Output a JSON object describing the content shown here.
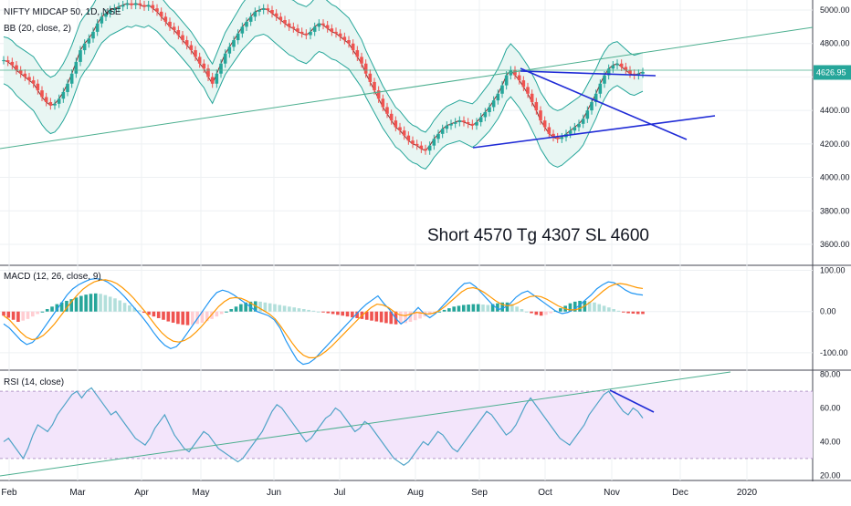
{
  "chart_data": {
    "type": "candlestick",
    "symbol": "NIFTY MIDCAP 50, 1D, NSE",
    "indicator_labels": {
      "bb": "BB (20, close, 2)",
      "macd": "MACD (12, 26, close, 9)",
      "rsi": "RSI (14, close)"
    },
    "annotation": "Short 4570 Tg 4307 SL 4600",
    "last_price": "4626.95",
    "x_ticks": [
      "Feb",
      "Mar",
      "Apr",
      "May",
      "Jun",
      "Jul",
      "Aug",
      "Sep",
      "Oct",
      "Nov",
      "Dec",
      "2020"
    ],
    "price_axis": {
      "ticks": [
        "5000.00",
        "4800.00",
        "4600.00",
        "4400.00",
        "4200.00",
        "4000.00",
        "3800.00",
        "3600.00"
      ],
      "range": [
        3480,
        5060
      ]
    },
    "macd_axis": {
      "ticks": [
        "100.00",
        "0.00",
        "-100.00"
      ],
      "range": [
        -140,
        110
      ]
    },
    "rsi_axis": {
      "ticks": [
        "80.00",
        "60.00",
        "40.00",
        "20.00"
      ],
      "range": [
        18,
        82
      ],
      "bands": [
        30,
        70
      ]
    },
    "price_series": [
      [
        4700,
        4690,
        4670,
        4640,
        4620,
        4600,
        4580,
        4560,
        4520,
        4480,
        4450,
        4430,
        4440,
        4470,
        4510,
        4560,
        4620,
        4690,
        4760,
        4800,
        4830,
        4870,
        4920,
        4960,
        4980,
        5000,
        5010,
        5020,
        5030,
        5040,
        5030,
        5040,
        5030,
        5020,
        5030,
        5010,
        4990,
        4960,
        4930,
        4900,
        4880,
        4850,
        4820,
        4790,
        4760,
        4720,
        4680,
        4650,
        4600,
        4560,
        4620,
        4680,
        4740,
        4780,
        4820,
        4860,
        4900,
        4930,
        4960,
        4990,
        5000,
        5010,
        5000,
        4980,
        4960,
        4940,
        4920,
        4900,
        4890,
        4870,
        4860,
        4850,
        4870,
        4900,
        4920,
        4910,
        4890,
        4870,
        4860,
        4840,
        4820,
        4800,
        4760,
        4720,
        4680,
        4620,
        4570,
        4520,
        4470,
        4420,
        4380,
        4340,
        4300,
        4280,
        4250,
        4220,
        4200,
        4190,
        4170,
        4160,
        4190,
        4230,
        4260,
        4290,
        4310,
        4320,
        4330,
        4340,
        4330,
        4320,
        4310,
        4330,
        4360,
        4390,
        4420,
        4460,
        4500,
        4550,
        4610,
        4640,
        4610,
        4580,
        4540,
        4500,
        4450,
        4400,
        4340,
        4300,
        4260,
        4240,
        4230,
        4240,
        4260,
        4280,
        4300,
        4320,
        4350,
        4400,
        4450,
        4500,
        4560,
        4610,
        4650,
        4670,
        4680,
        4660,
        4640,
        4620,
        4610,
        4620,
        4630
      ]
    ],
    "macd_hist": [
      -10,
      -15,
      -20,
      -25,
      -22,
      -18,
      -12,
      -6,
      0,
      6,
      12,
      18,
      22,
      26,
      30,
      34,
      38,
      41,
      43,
      44,
      43,
      40,
      36,
      32,
      27,
      21,
      15,
      9,
      3,
      -3,
      -8,
      -12,
      -16,
      -20,
      -24,
      -27,
      -30,
      -32,
      -33,
      -32,
      -30,
      -27,
      -23,
      -18,
      -12,
      -6,
      0,
      6,
      12,
      18,
      22,
      24,
      25,
      24,
      22,
      20,
      18,
      16,
      14,
      12,
      10,
      8,
      6,
      4,
      2,
      0,
      -2,
      -4,
      -6,
      -8,
      -10,
      -12,
      -14,
      -16,
      -18,
      -20,
      -22,
      -24,
      -26,
      -28,
      -30,
      -31,
      -30,
      -28,
      -25,
      -21,
      -17,
      -12,
      -8,
      -4,
      0,
      4,
      8,
      12,
      14,
      16,
      17,
      18,
      18,
      17,
      16,
      18,
      20,
      22,
      22,
      18,
      12,
      6,
      0,
      -4,
      -8,
      -10,
      -8,
      -4,
      2,
      8,
      14,
      20,
      24,
      26,
      26,
      24,
      22,
      18,
      14,
      10,
      6,
      2,
      -2,
      -4,
      -5,
      -6,
      -6
    ],
    "macd_line": [
      -30,
      -40,
      -55,
      -70,
      -80,
      -75,
      -60,
      -40,
      -20,
      0,
      20,
      40,
      55,
      65,
      72,
      78,
      80,
      78,
      72,
      62,
      50,
      36,
      20,
      4,
      -12,
      -30,
      -50,
      -68,
      -82,
      -90,
      -85,
      -70,
      -50,
      -30,
      -10,
      10,
      30,
      46,
      52,
      48,
      40,
      30,
      20,
      10,
      0,
      -5,
      -10,
      -20,
      -40,
      -70,
      -95,
      -118,
      -128,
      -125,
      -115,
      -100,
      -85,
      -70,
      -55,
      -40,
      -25,
      -10,
      5,
      18,
      28,
      38,
      20,
      5,
      -15,
      -30,
      -20,
      -5,
      10,
      -5,
      -15,
      -5,
      10,
      25,
      40,
      55,
      68,
      70,
      60,
      45,
      30,
      15,
      5,
      10,
      20,
      35,
      45,
      50,
      40,
      30,
      20,
      10,
      0,
      -5,
      -2,
      5,
      15,
      28,
      40,
      55,
      65,
      72,
      70,
      62,
      52,
      45,
      42,
      40
    ],
    "macd_signal": [
      -10,
      -20,
      -35,
      -50,
      -62,
      -68,
      -66,
      -58,
      -45,
      -30,
      -12,
      6,
      24,
      40,
      54,
      64,
      72,
      76,
      77,
      74,
      68,
      58,
      46,
      32,
      16,
      0,
      -18,
      -36,
      -52,
      -64,
      -72,
      -74,
      -70,
      -62,
      -50,
      -36,
      -20,
      -4,
      12,
      24,
      32,
      34,
      32,
      26,
      18,
      10,
      2,
      -6,
      -18,
      -36,
      -56,
      -76,
      -94,
      -106,
      -112,
      -112,
      -106,
      -96,
      -84,
      -70,
      -56,
      -42,
      -28,
      -14,
      -2,
      10,
      18,
      16,
      10,
      0,
      -8,
      -10,
      -6,
      -2,
      -4,
      -6,
      -4,
      2,
      12,
      24,
      36,
      48,
      56,
      58,
      54,
      46,
      36,
      26,
      18,
      14,
      16,
      22,
      30,
      36,
      38,
      36,
      30,
      22,
      14,
      8,
      4,
      4,
      8,
      16,
      26,
      38,
      50,
      60,
      66,
      68,
      66,
      62,
      58,
      56
    ],
    "rsi": [
      40,
      42,
      38,
      34,
      30,
      36,
      44,
      50,
      48,
      46,
      50,
      56,
      60,
      64,
      68,
      70,
      66,
      70,
      72,
      68,
      64,
      60,
      56,
      58,
      54,
      50,
      46,
      42,
      40,
      38,
      42,
      48,
      52,
      56,
      50,
      44,
      40,
      36,
      34,
      38,
      42,
      46,
      44,
      40,
      36,
      34,
      32,
      30,
      28,
      30,
      34,
      38,
      42,
      46,
      52,
      58,
      62,
      60,
      56,
      52,
      48,
      44,
      40,
      42,
      46,
      50,
      54,
      56,
      60,
      58,
      54,
      50,
      46,
      48,
      52,
      50,
      46,
      42,
      38,
      34,
      30,
      28,
      26,
      28,
      32,
      36,
      40,
      38,
      42,
      46,
      44,
      40,
      36,
      34,
      38,
      42,
      46,
      50,
      54,
      58,
      56,
      52,
      48,
      44,
      46,
      50,
      56,
      62,
      66,
      62,
      58,
      54,
      50,
      46,
      42,
      40,
      38,
      42,
      46,
      50,
      56,
      60,
      64,
      68,
      70,
      66,
      62,
      58,
      56,
      60,
      58,
      54
    ]
  }
}
